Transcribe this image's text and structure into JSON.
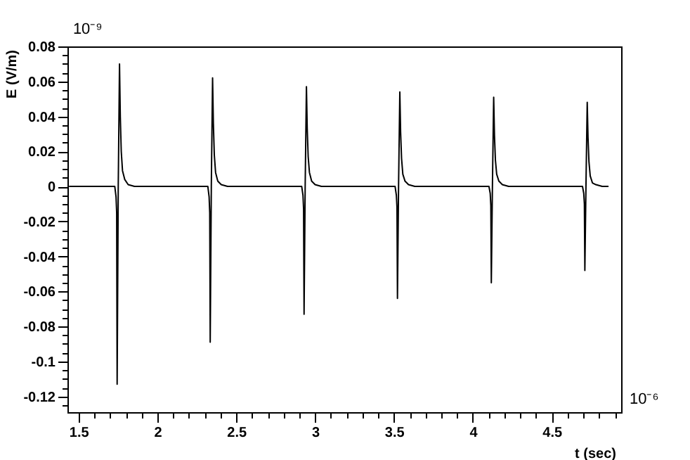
{
  "chart_data": {
    "type": "line",
    "xlabel": "t (sec)",
    "ylabel": "E (V/m)",
    "annotations": [
      "10⁻⁹",
      "10⁻⁶"
    ],
    "xlim": [
      1.43,
      4.94
    ],
    "ylim": [
      -0.129,
      0.08
    ],
    "xticks": [
      1.5,
      {
        "value": 1.6,
        "label": null
      },
      {
        "value": 1.7,
        "label": null
      },
      {
        "value": 1.8,
        "label": null
      },
      {
        "value": 1.9,
        "label": null
      },
      2,
      {
        "value": 2.1,
        "label": null
      },
      {
        "value": 2.2,
        "label": null
      },
      {
        "value": 2.3,
        "label": null
      },
      {
        "value": 2.4,
        "label": null
      },
      2.5,
      {
        "value": 2.6,
        "label": null
      },
      {
        "value": 2.7,
        "label": null
      },
      {
        "value": 2.8,
        "label": null
      },
      {
        "value": 2.9,
        "label": null
      },
      3,
      {
        "value": 3.1,
        "label": null
      },
      {
        "value": 3.2,
        "label": null
      },
      {
        "value": 3.3,
        "label": null
      },
      {
        "value": 3.4,
        "label": null
      },
      3.5,
      {
        "value": 3.6,
        "label": null
      },
      {
        "value": 3.7,
        "label": null
      },
      {
        "value": 3.8,
        "label": null
      },
      {
        "value": 3.9,
        "label": null
      },
      4,
      {
        "value": 4.1,
        "label": null
      },
      {
        "value": 4.2,
        "label": null
      },
      {
        "value": 4.3,
        "label": null
      },
      {
        "value": 4.4,
        "label": null
      },
      4.5,
      {
        "value": 4.6,
        "label": null
      },
      {
        "value": 4.7,
        "label": null
      },
      {
        "value": 4.8,
        "label": null
      },
      {
        "value": 4.9,
        "label": null
      }
    ],
    "yticks": [
      {
        "value": -0.125,
        "label": null
      },
      -0.12,
      {
        "value": -0.115,
        "label": null
      },
      {
        "value": -0.11,
        "label": null
      },
      {
        "value": -0.105,
        "label": null
      },
      -0.1,
      {
        "value": -0.095,
        "label": null
      },
      {
        "value": -0.09,
        "label": null
      },
      {
        "value": -0.085,
        "label": null
      },
      -0.08,
      {
        "value": -0.075,
        "label": null
      },
      {
        "value": -0.07,
        "label": null
      },
      {
        "value": -0.065,
        "label": null
      },
      -0.06,
      {
        "value": -0.055,
        "label": null
      },
      {
        "value": -0.05,
        "label": null
      },
      {
        "value": -0.045,
        "label": null
      },
      -0.04,
      {
        "value": -0.035,
        "label": null
      },
      {
        "value": -0.03,
        "label": null
      },
      {
        "value": -0.025,
        "label": null
      },
      -0.02,
      {
        "value": -0.015,
        "label": null
      },
      {
        "value": -0.01,
        "label": null
      },
      {
        "value": -0.005,
        "label": null
      },
      0,
      {
        "value": 0.005,
        "label": null
      },
      {
        "value": 0.01,
        "label": null
      },
      {
        "value": 0.015,
        "label": null
      },
      0.02,
      {
        "value": 0.025,
        "label": null
      },
      {
        "value": 0.03,
        "label": null
      },
      {
        "value": 0.035,
        "label": null
      },
      0.04,
      {
        "value": 0.045,
        "label": null
      },
      {
        "value": 0.05,
        "label": null
      },
      {
        "value": 0.055,
        "label": null
      },
      0.06,
      {
        "value": 0.065,
        "label": null
      },
      {
        "value": 0.07,
        "label": null
      },
      {
        "value": 0.075,
        "label": null
      },
      0.08
    ],
    "series": [
      {
        "color": "#000000",
        "x": [
          1.44,
          1.73,
          1.738,
          1.742,
          1.745,
          1.752,
          1.76,
          1.765,
          1.771,
          1.779,
          1.793,
          1.815,
          1.855,
          2.32,
          2.328,
          2.332,
          2.335,
          2.342,
          2.35,
          2.355,
          2.361,
          2.369,
          2.383,
          2.405,
          2.445,
          2.915,
          2.923,
          2.927,
          2.93,
          2.937,
          2.945,
          2.95,
          2.956,
          2.964,
          2.978,
          3.0,
          3.04,
          3.507,
          3.515,
          3.519,
          3.522,
          3.529,
          3.537,
          3.542,
          3.548,
          3.556,
          3.57,
          3.592,
          3.632,
          4.102,
          4.11,
          4.114,
          4.117,
          4.124,
          4.132,
          4.137,
          4.143,
          4.151,
          4.165,
          4.187,
          4.227,
          4.695,
          4.703,
          4.707,
          4.71,
          4.717,
          4.725,
          4.73,
          4.736,
          4.744,
          4.758,
          4.78,
          4.82,
          4.86
        ],
        "values": [
          0,
          0,
          -0.006,
          -0.015,
          -0.113,
          0,
          0.07,
          0.04,
          0.02,
          0.009,
          0.004,
          0.001,
          0,
          0,
          -0.006,
          -0.015,
          -0.089,
          0,
          0.062,
          0.036,
          0.018,
          0.008,
          0.003,
          0.001,
          0,
          0,
          -0.005,
          -0.013,
          -0.073,
          0,
          0.057,
          0.033,
          0.017,
          0.008,
          0.003,
          0.001,
          0,
          0,
          -0.005,
          -0.012,
          -0.064,
          0,
          0.054,
          0.031,
          0.016,
          0.007,
          0.003,
          0.001,
          0,
          0,
          -0.004,
          -0.011,
          -0.055,
          0,
          0.051,
          0.029,
          0.015,
          0.007,
          0.003,
          0.001,
          0,
          0,
          -0.004,
          -0.01,
          -0.048,
          0,
          0.048,
          0.028,
          0.014,
          0.006,
          0.002,
          0.001,
          0,
          0
        ]
      }
    ]
  }
}
